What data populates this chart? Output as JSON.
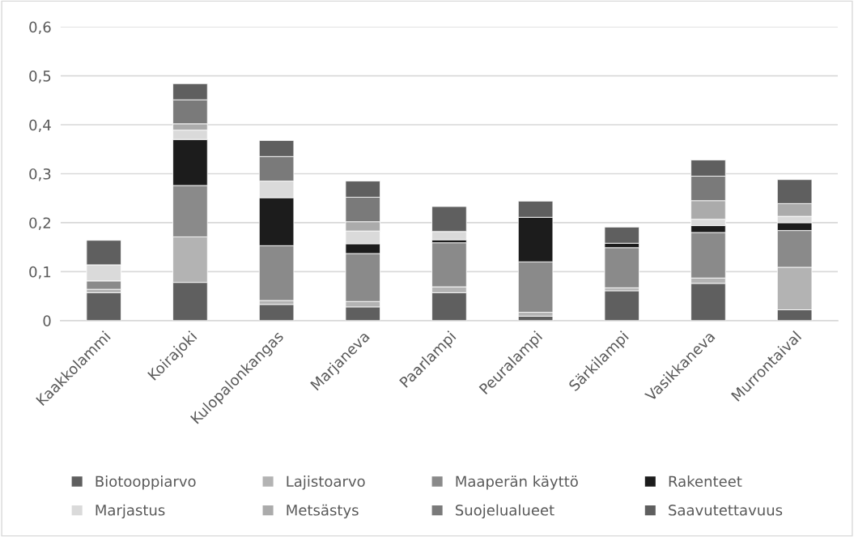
{
  "chart_data": {
    "type": "bar",
    "stacked": true,
    "categories": [
      "Kaakkolammi",
      "Koirajoki",
      "Kulopalonkangas",
      "Marjaneva",
      "Paarlampi",
      "Peuralampi",
      "Särkilampi",
      "Vasikkaneva",
      "Murrontaival"
    ],
    "series": [
      {
        "name": "Biotooppiarvo",
        "color": "#5f5f5f",
        "values": [
          0.057,
          0.078,
          0.033,
          0.028,
          0.057,
          0.009,
          0.061,
          0.076,
          0.022
        ]
      },
      {
        "name": "Lajistoarvo",
        "color": "#b3b3b3",
        "values": [
          0.007,
          0.093,
          0.008,
          0.011,
          0.012,
          0.008,
          0.006,
          0.011,
          0.087
        ]
      },
      {
        "name": "Maaperän käyttö",
        "color": "#8a8a8a",
        "values": [
          0.017,
          0.105,
          0.112,
          0.098,
          0.09,
          0.103,
          0.082,
          0.093,
          0.075
        ]
      },
      {
        "name": "Rakenteet",
        "color": "#1c1c1c",
        "values": [
          0,
          0.094,
          0.098,
          0.02,
          0.006,
          0.091,
          0.009,
          0.014,
          0.016
        ]
      },
      {
        "name": "Marjastus",
        "color": "#dadada",
        "values": [
          0.033,
          0.019,
          0.034,
          0.026,
          0.017,
          0,
          0,
          0.013,
          0.013
        ]
      },
      {
        "name": "Metsästys",
        "color": "#ababab",
        "values": [
          0,
          0.013,
          0,
          0.019,
          0,
          0,
          0,
          0.038,
          0.026
        ]
      },
      {
        "name": "Suojelualueet",
        "color": "#7a7a7a",
        "values": [
          0,
          0.049,
          0.05,
          0.05,
          0,
          0,
          0,
          0.05,
          0
        ]
      },
      {
        "name": "Saavutettavuus",
        "color": "#5f5f5f",
        "values": [
          0.05,
          0.033,
          0.033,
          0.033,
          0.051,
          0.033,
          0.033,
          0.033,
          0.049
        ]
      }
    ],
    "ylim": [
      0,
      0.6
    ],
    "yticks": [
      0,
      {
        "value": 0.1,
        "label": "0,1"
      },
      {
        "value": 0.2,
        "label": "0,2"
      },
      {
        "value": 0.3,
        "label": "0,3"
      },
      {
        "value": 0.4,
        "label": "0,4"
      },
      {
        "value": 0.5,
        "label": "0,5"
      },
      {
        "value": 0.6,
        "label": "0,6"
      }
    ],
    "grid": "y",
    "legend": "bottom"
  }
}
